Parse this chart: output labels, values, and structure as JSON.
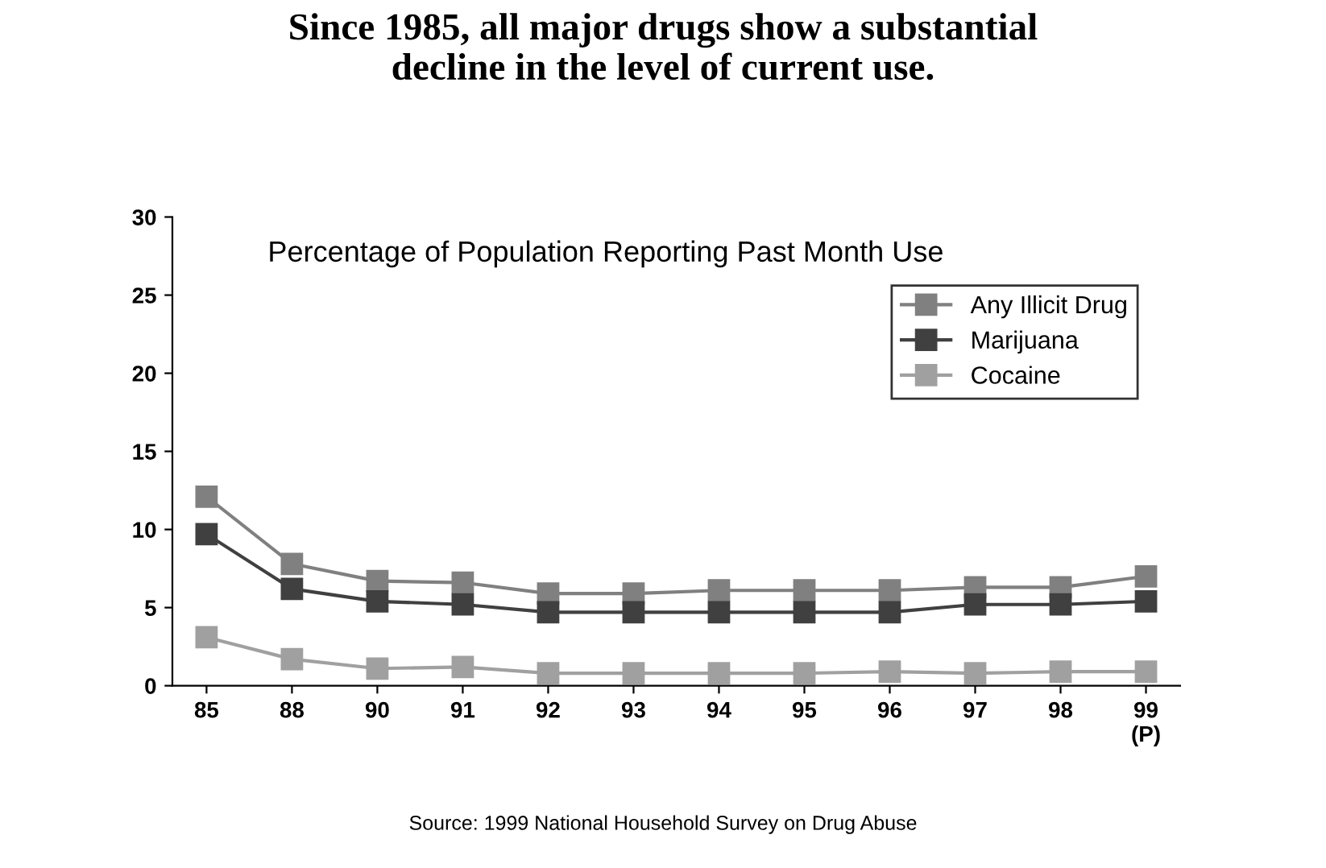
{
  "chart_data": {
    "type": "line",
    "title": "Since 1985, all major drugs show a substantial\ndecline in the level of current use.",
    "subtitle": "Percentage of Population Reporting Past Month Use",
    "categories": [
      "85",
      "88",
      "90",
      "91",
      "92",
      "93",
      "94",
      "95",
      "96",
      "97",
      "98",
      "99\n(P)"
    ],
    "series": [
      {
        "name": "Any Illicit Drug",
        "color": "#808080",
        "values": [
          12.1,
          7.8,
          6.7,
          6.6,
          5.9,
          5.9,
          6.1,
          6.1,
          6.1,
          6.3,
          6.3,
          7.0
        ]
      },
      {
        "name": "Marijuana",
        "color": "#404040",
        "values": [
          9.7,
          6.2,
          5.4,
          5.2,
          4.7,
          4.7,
          4.7,
          4.7,
          4.7,
          5.2,
          5.2,
          5.4
        ]
      },
      {
        "name": "Cocaine",
        "color": "#a0a0a0",
        "values": [
          3.1,
          1.7,
          1.1,
          1.2,
          0.8,
          0.8,
          0.8,
          0.8,
          0.9,
          0.8,
          0.9,
          0.9
        ]
      }
    ],
    "ylim": [
      0,
      30
    ],
    "yticks": [
      0,
      5,
      10,
      15,
      20,
      25,
      30
    ],
    "grid": false,
    "legend": "top right",
    "marker": "square",
    "line_style": "solid",
    "annotations": [
      "Source: 1999 National Household Survey on Drug Abuse"
    ]
  }
}
